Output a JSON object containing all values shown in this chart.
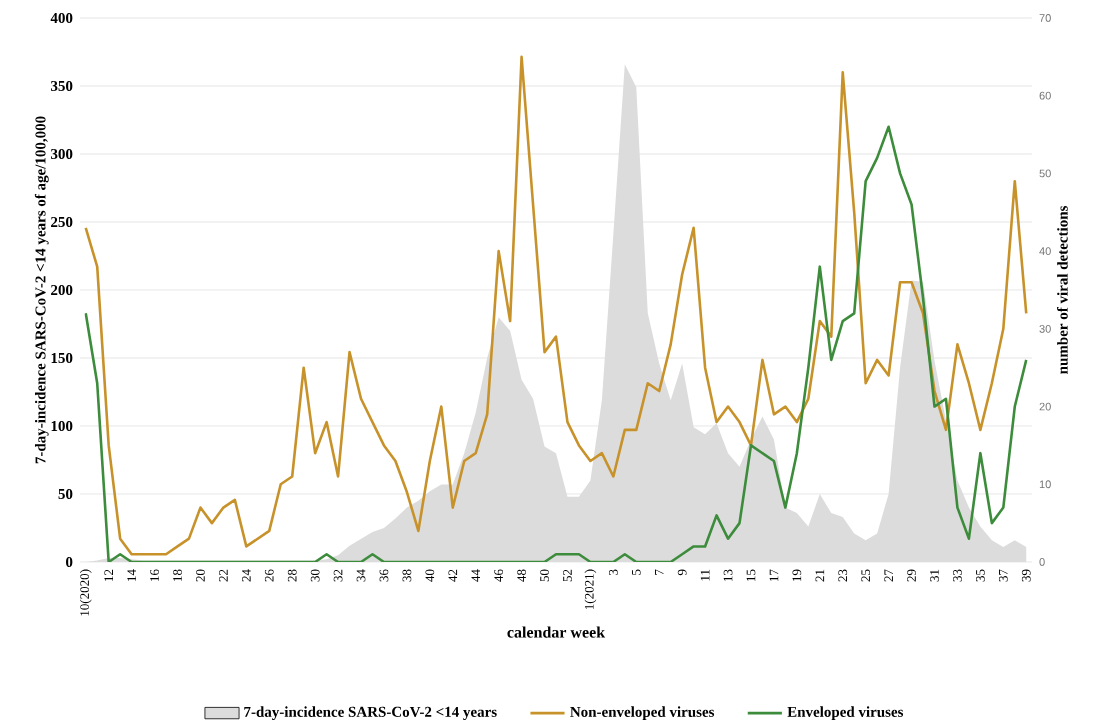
{
  "chart_data": {
    "type": "line",
    "xlabel": "calendar week",
    "ylabel": "7-day-incidence SARS-CoV-2 <14 years of age/100,000",
    "y2label": "number of viral detections",
    "categories": [
      "10(2020)",
      null,
      "12",
      null,
      "14",
      null,
      "16",
      null,
      "18",
      null,
      "20",
      null,
      "22",
      null,
      "24",
      null,
      "26",
      null,
      "28",
      null,
      "30",
      null,
      "32",
      null,
      "34",
      null,
      "36",
      null,
      "38",
      null,
      "40",
      null,
      "42",
      null,
      "44",
      null,
      "46",
      null,
      "48",
      null,
      "50",
      null,
      "52",
      null,
      "1(2021)",
      null,
      "3",
      null,
      "5",
      null,
      "7",
      null,
      "9",
      null,
      "11",
      null,
      "13",
      null,
      "15",
      null,
      "17",
      null,
      "19",
      null,
      "21",
      null,
      "23",
      null,
      "25",
      null,
      "27",
      null,
      "29",
      null,
      "31",
      null,
      "33",
      null,
      "35",
      null,
      "37",
      null,
      "39"
    ],
    "series": [
      {
        "name": "7-day-incidence SARS-CoV-2 <14 years",
        "type": "area",
        "axis": "y",
        "color": "#dcdcdc",
        "values": [
          0,
          1,
          3,
          3,
          2,
          1,
          1,
          1,
          1,
          1,
          1,
          1,
          1,
          1,
          1,
          1,
          1,
          1,
          1,
          1,
          1,
          2,
          5,
          12,
          17,
          22,
          25,
          32,
          40,
          45,
          52,
          57,
          57,
          80,
          110,
          150,
          180,
          170,
          134,
          120,
          85,
          80,
          48,
          48,
          60,
          119,
          241,
          366,
          349,
          183,
          146,
          119,
          146,
          99,
          94,
          102,
          80,
          70,
          90,
          107,
          90,
          40,
          36,
          26,
          50,
          36,
          33,
          21,
          16,
          21,
          50,
          143,
          207,
          206,
          148,
          104,
          60,
          40,
          26,
          16,
          11,
          16,
          11
        ]
      },
      {
        "name": "Non-enveloped viruses",
        "axis": "y2",
        "color": "#c8922b",
        "values": [
          43,
          38,
          15,
          3,
          1,
          1,
          1,
          1,
          2,
          3,
          7,
          5,
          7,
          8,
          2,
          3,
          4,
          10,
          11,
          25,
          14,
          18,
          11,
          27,
          21,
          18,
          15,
          13,
          9,
          4,
          13,
          20,
          7,
          13,
          14,
          19,
          40,
          31,
          65,
          46,
          27,
          29,
          18,
          15,
          13,
          14,
          11,
          17,
          17,
          23,
          22,
          28,
          37,
          43,
          25,
          18,
          20,
          18,
          15,
          26,
          19,
          20,
          18,
          21,
          31,
          29,
          63,
          45,
          23,
          26,
          24,
          36,
          36,
          32,
          22,
          17,
          28,
          23,
          17,
          23,
          30,
          49,
          32
        ]
      },
      {
        "name": "Enveloped viruses",
        "axis": "y2",
        "color": "#3c8c3c",
        "values": [
          32,
          23,
          0,
          1,
          0,
          0,
          0,
          0,
          0,
          0,
          0,
          0,
          0,
          0,
          0,
          0,
          0,
          0,
          0,
          0,
          0,
          1,
          0,
          0,
          0,
          1,
          0,
          0,
          0,
          0,
          0,
          0,
          0,
          0,
          0,
          0,
          0,
          0,
          0,
          0,
          0,
          1,
          1,
          1,
          0,
          0,
          0,
          1,
          0,
          0,
          0,
          0,
          1,
          2,
          2,
          6,
          3,
          5,
          15,
          14,
          13,
          7,
          14,
          25,
          38,
          26,
          31,
          32,
          49,
          52,
          56,
          50,
          46,
          34,
          20,
          21,
          7,
          3,
          14,
          5,
          7,
          20,
          26
        ]
      }
    ],
    "ylim": [
      0,
      400
    ],
    "yticks": [
      0,
      50,
      100,
      150,
      200,
      250,
      300,
      350,
      400
    ],
    "y2lim": [
      0,
      70
    ],
    "y2ticks": [
      0,
      10,
      20,
      30,
      40,
      50,
      60,
      70
    ],
    "grid": "y",
    "legend": "bottom"
  }
}
